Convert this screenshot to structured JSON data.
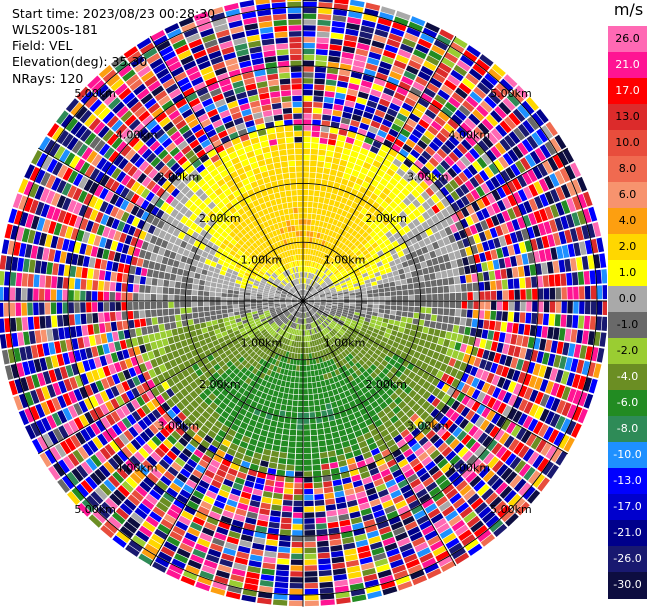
{
  "header": {
    "start_time": "Start time: 2023/08/23 00:28:30",
    "instrument": "WLS200s-181",
    "field": "Field: VEL",
    "elevation": "Elevation(deg): 35.30",
    "nrays": "NRays: 120"
  },
  "chart_data": {
    "type": "heatmap",
    "subtype": "radar-ppi-polar",
    "field": "VEL",
    "units": "m/s",
    "n_rays": 120,
    "elevation_deg": 35.3,
    "range_rings_km": [
      1.0,
      2.0,
      3.0,
      4.0,
      5.0
    ],
    "ring_labels": [
      "1.00km",
      "2.00km",
      "3.00km",
      "4.00km",
      "5.00km"
    ],
    "max_range_km": 5.2,
    "azimuth_lines_deg": [
      0,
      30,
      60,
      90,
      120,
      150,
      180,
      210,
      240,
      270,
      300,
      330
    ],
    "colorbar": {
      "unit_label": "m/s",
      "tick_labels": [
        "26.0",
        "21.0",
        "17.0",
        "13.0",
        "10.0",
        "8.0",
        "6.0",
        "4.0",
        "2.0",
        "1.0",
        "0.0",
        "-1.0",
        "-2.0",
        "-4.0",
        "-6.0",
        "-8.0",
        "-10.0",
        "-13.0",
        "-17.0",
        "-21.0",
        "-26.0",
        "-30.0"
      ],
      "colors": [
        "#ff69b4",
        "#ff1493",
        "#ff0000",
        "#dc2b2b",
        "#e84d3c",
        "#f06a50",
        "#f7936e",
        "#fd9f10",
        "#ffd700",
        "#ffff00",
        "#a9a9a9",
        "#696969",
        "#9acd32",
        "#6b8e23",
        "#228b22",
        "#2e8b57",
        "#1e90ff",
        "#0000ff",
        "#0000cd",
        "#00008b",
        "#191970",
        "#0d0d40"
      ]
    },
    "velocity_profile_by_range": [
      {
        "range_km": 0.5,
        "north_ms": 1.0,
        "south_ms": -1.0
      },
      {
        "range_km": 1.0,
        "north_ms": 4.0,
        "south_ms": -4.0
      },
      {
        "range_km": 2.0,
        "north_ms": 3.0,
        "south_ms": -6.0
      },
      {
        "range_km": 2.7,
        "north_ms": 2.0,
        "south_ms": -4.0
      }
    ],
    "noise_beyond_km": 2.9
  }
}
